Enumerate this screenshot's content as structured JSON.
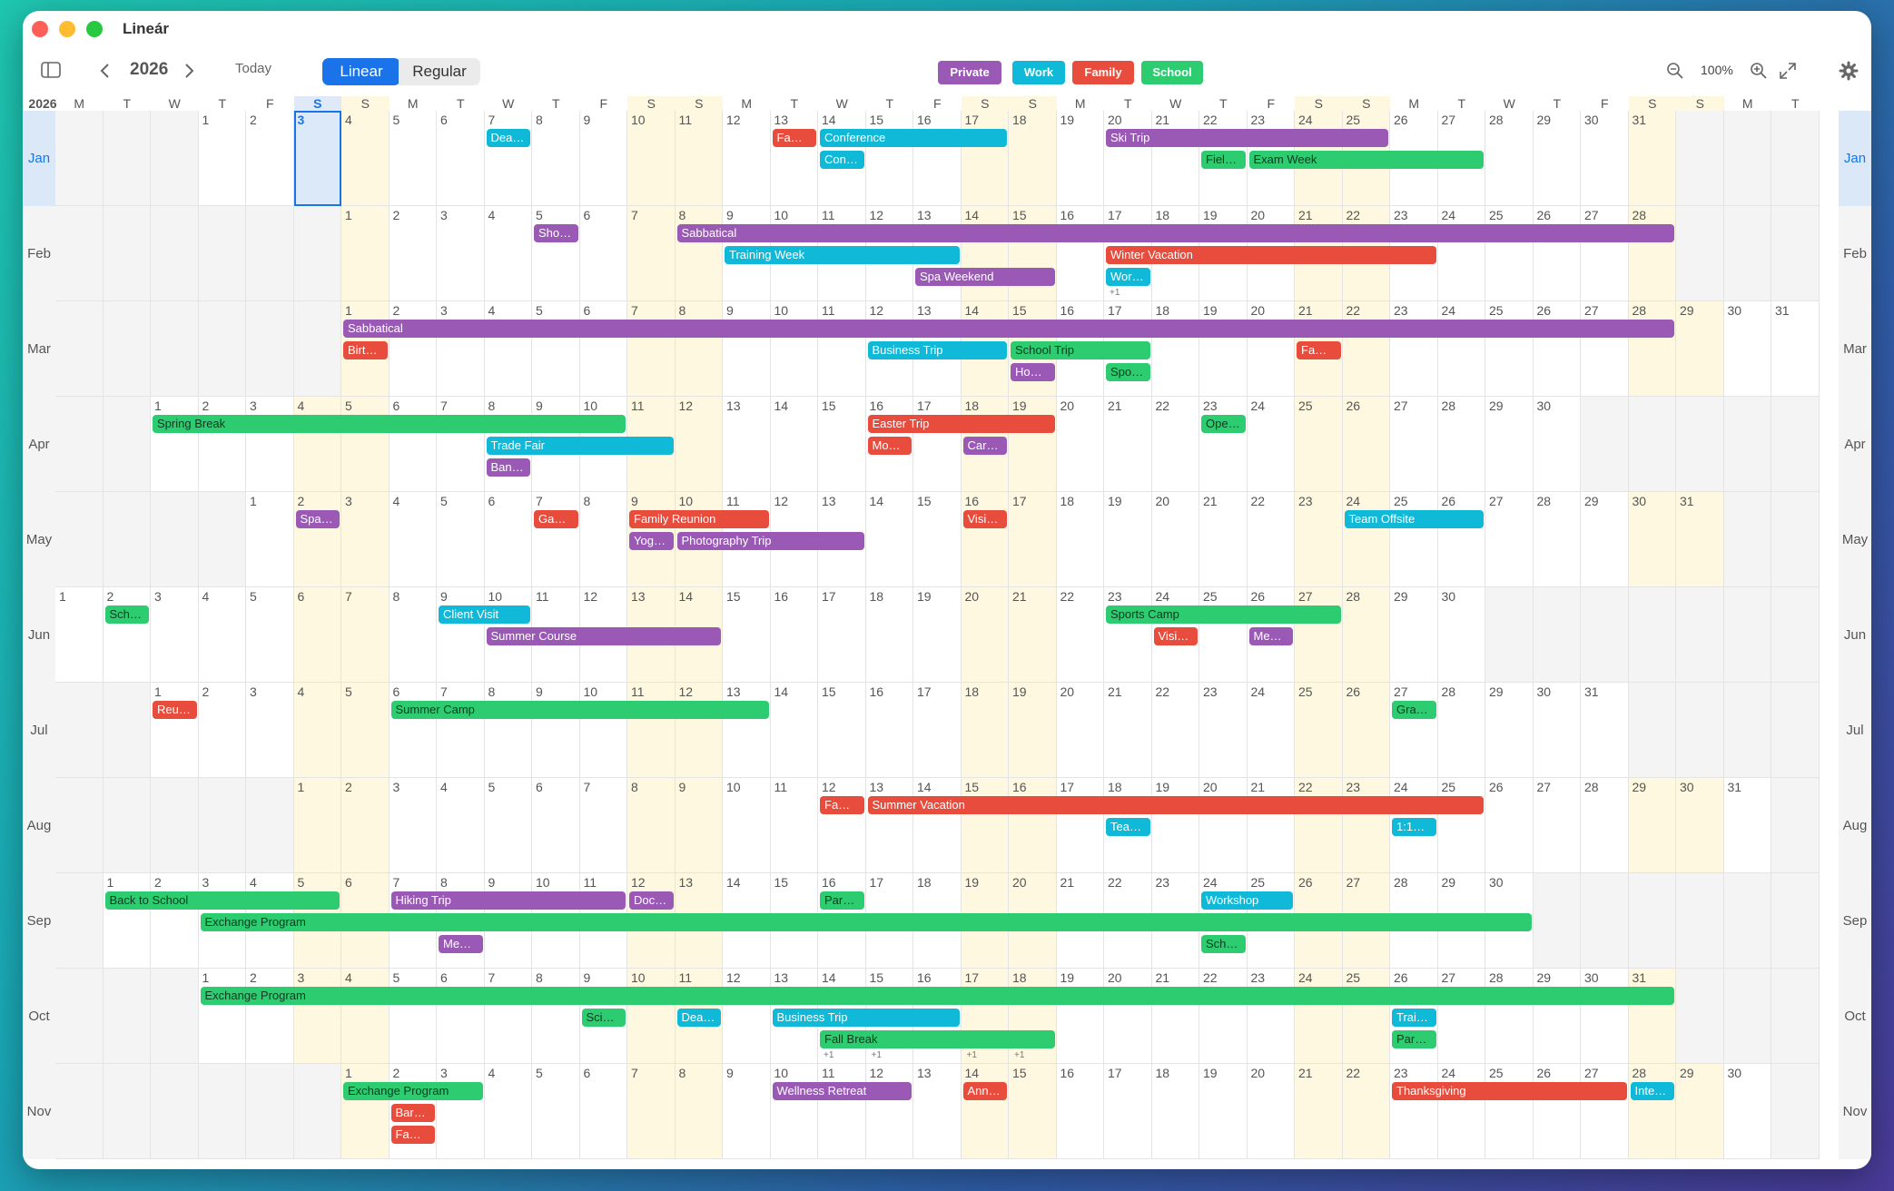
{
  "window": {
    "title": "Lineár"
  },
  "toolbar": {
    "year": "2026",
    "today_label": "Today",
    "view_linear": "Linear",
    "view_regular": "Regular",
    "zoom": "100%"
  },
  "colors": {
    "Private": "#9b59b6",
    "Work": "#10b9d8",
    "Family": "#e84c3d",
    "School": "#2ecc71",
    "today": "#1a73e8",
    "weekend": "#fdf8df"
  },
  "legend": [
    {
      "label": "Private",
      "cat": "Private"
    },
    {
      "label": "Work",
      "cat": "Work"
    },
    {
      "label": "Family",
      "cat": "Family"
    },
    {
      "label": "School",
      "cat": "School"
    }
  ],
  "calendar": {
    "year_label": "2026",
    "weekday_letters": [
      "M",
      "T",
      "W",
      "T",
      "F",
      "S",
      "S"
    ],
    "today": {
      "month": 1,
      "day": 3,
      "header_letter": "S"
    },
    "months": [
      {
        "label": "Jan",
        "offset": 3,
        "days": 31
      },
      {
        "label": "Feb",
        "offset": 6,
        "days": 28
      },
      {
        "label": "Mar",
        "offset": 6,
        "days": 31
      },
      {
        "label": "Apr",
        "offset": 2,
        "days": 30
      },
      {
        "label": "May",
        "offset": 4,
        "days": 31
      },
      {
        "label": "Jun",
        "offset": 0,
        "days": 30
      },
      {
        "label": "Jul",
        "offset": 2,
        "days": 31
      },
      {
        "label": "Aug",
        "offset": 5,
        "days": 31
      },
      {
        "label": "Sep",
        "offset": 1,
        "days": 30
      },
      {
        "label": "Oct",
        "offset": 3,
        "days": 31
      },
      {
        "label": "Nov",
        "offset": 6,
        "days": 30
      }
    ],
    "events": [
      {
        "m": 1,
        "s": 7,
        "e": 7,
        "lane": 0,
        "cat": "Work",
        "label": "Dea…"
      },
      {
        "m": 1,
        "s": 13,
        "e": 13,
        "lane": 0,
        "cat": "Family",
        "label": "Fa…"
      },
      {
        "m": 1,
        "s": 14,
        "e": 17,
        "lane": 0,
        "cat": "Work",
        "label": "Conference"
      },
      {
        "m": 1,
        "s": 14,
        "e": 14,
        "lane": 1,
        "cat": "Work",
        "label": "Con…"
      },
      {
        "m": 1,
        "s": 20,
        "e": 25,
        "lane": 0,
        "cat": "Private",
        "label": "Ski Trip"
      },
      {
        "m": 1,
        "s": 22,
        "e": 22,
        "lane": 1,
        "cat": "School",
        "label": "Fiel…"
      },
      {
        "m": 1,
        "s": 23,
        "e": 27,
        "lane": 1,
        "cat": "School",
        "label": "Exam Week"
      },
      {
        "m": 2,
        "s": 5,
        "e": 5,
        "lane": 0,
        "cat": "Private",
        "label": "Sho…"
      },
      {
        "m": 2,
        "s": 8,
        "e": 28,
        "lane": 0,
        "cat": "Private",
        "label": "Sabbatical"
      },
      {
        "m": 2,
        "s": 9,
        "e": 13,
        "lane": 1,
        "cat": "Work",
        "label": "Training Week"
      },
      {
        "m": 2,
        "s": 17,
        "e": 23,
        "lane": 1,
        "cat": "Family",
        "label": "Winter Vacation"
      },
      {
        "m": 2,
        "s": 13,
        "e": 15,
        "lane": 2,
        "cat": "Private",
        "label": "Spa Weekend"
      },
      {
        "m": 2,
        "s": 17,
        "e": 17,
        "lane": 2,
        "cat": "Work",
        "label": "Wor…"
      },
      {
        "m": 3,
        "s": 1,
        "e": 28,
        "lane": 0,
        "cat": "Private",
        "label": "Sabbatical"
      },
      {
        "m": 3,
        "s": 1,
        "e": 1,
        "lane": 1,
        "cat": "Family",
        "label": "Birt…"
      },
      {
        "m": 3,
        "s": 12,
        "e": 14,
        "lane": 1,
        "cat": "Work",
        "label": "Business Trip"
      },
      {
        "m": 3,
        "s": 15,
        "e": 17,
        "lane": 1,
        "cat": "School",
        "label": "School Trip"
      },
      {
        "m": 3,
        "s": 21,
        "e": 21,
        "lane": 1,
        "cat": "Family",
        "label": "Fa…"
      },
      {
        "m": 3,
        "s": 15,
        "e": 15,
        "lane": 2,
        "cat": "Private",
        "label": "Ho…"
      },
      {
        "m": 3,
        "s": 17,
        "e": 17,
        "lane": 2,
        "cat": "School",
        "label": "Spo…"
      },
      {
        "m": 4,
        "s": 1,
        "e": 10,
        "lane": 0,
        "cat": "School",
        "label": "Spring Break"
      },
      {
        "m": 4,
        "s": 16,
        "e": 19,
        "lane": 0,
        "cat": "Family",
        "label": "Easter Trip"
      },
      {
        "m": 4,
        "s": 23,
        "e": 23,
        "lane": 0,
        "cat": "School",
        "label": "Ope…"
      },
      {
        "m": 4,
        "s": 8,
        "e": 11,
        "lane": 1,
        "cat": "Work",
        "label": "Trade Fair"
      },
      {
        "m": 4,
        "s": 16,
        "e": 16,
        "lane": 1,
        "cat": "Family",
        "label": "Mo…"
      },
      {
        "m": 4,
        "s": 18,
        "e": 18,
        "lane": 1,
        "cat": "Private",
        "label": "Car…"
      },
      {
        "m": 4,
        "s": 8,
        "e": 8,
        "lane": 2,
        "cat": "Private",
        "label": "Ban…"
      },
      {
        "m": 5,
        "s": 2,
        "e": 2,
        "lane": 0,
        "cat": "Private",
        "label": "Spa…"
      },
      {
        "m": 5,
        "s": 7,
        "e": 7,
        "lane": 0,
        "cat": "Family",
        "label": "Ga…"
      },
      {
        "m": 5,
        "s": 9,
        "e": 11,
        "lane": 0,
        "cat": "Family",
        "label": "Family Reunion"
      },
      {
        "m": 5,
        "s": 16,
        "e": 16,
        "lane": 0,
        "cat": "Family",
        "label": "Visi…"
      },
      {
        "m": 5,
        "s": 24,
        "e": 26,
        "lane": 0,
        "cat": "Work",
        "label": "Team Offsite"
      },
      {
        "m": 5,
        "s": 9,
        "e": 9,
        "lane": 1,
        "cat": "Private",
        "label": "Yog…"
      },
      {
        "m": 5,
        "s": 10,
        "e": 13,
        "lane": 1,
        "cat": "Private",
        "label": "Photography Trip"
      },
      {
        "m": 6,
        "s": 2,
        "e": 2,
        "lane": 0,
        "cat": "School",
        "label": "Sch…"
      },
      {
        "m": 6,
        "s": 9,
        "e": 10,
        "lane": 0,
        "cat": "Work",
        "label": "Client Visit"
      },
      {
        "m": 6,
        "s": 23,
        "e": 27,
        "lane": 0,
        "cat": "School",
        "label": "Sports Camp"
      },
      {
        "m": 6,
        "s": 10,
        "e": 14,
        "lane": 1,
        "cat": "Private",
        "label": "Summer Course"
      },
      {
        "m": 6,
        "s": 24,
        "e": 24,
        "lane": 1,
        "cat": "Family",
        "label": "Visi…"
      },
      {
        "m": 6,
        "s": 26,
        "e": 26,
        "lane": 1,
        "cat": "Private",
        "label": "Me…"
      },
      {
        "m": 7,
        "s": 1,
        "e": 1,
        "lane": 0,
        "cat": "Family",
        "label": "Reu…"
      },
      {
        "m": 7,
        "s": 6,
        "e": 13,
        "lane": 0,
        "cat": "School",
        "label": "Summer Camp"
      },
      {
        "m": 7,
        "s": 27,
        "e": 27,
        "lane": 0,
        "cat": "School",
        "label": "Gra…"
      },
      {
        "m": 8,
        "s": 12,
        "e": 12,
        "lane": 0,
        "cat": "Family",
        "label": "Fa…"
      },
      {
        "m": 8,
        "s": 13,
        "e": 25,
        "lane": 0,
        "cat": "Family",
        "label": "Summer Vacation"
      },
      {
        "m": 8,
        "s": 18,
        "e": 18,
        "lane": 1,
        "cat": "Work",
        "label": "Tea…"
      },
      {
        "m": 8,
        "s": 24,
        "e": 24,
        "lane": 1,
        "cat": "Work",
        "label": "1:1…"
      },
      {
        "m": 9,
        "s": 1,
        "e": 5,
        "lane": 0,
        "cat": "School",
        "label": "Back to School"
      },
      {
        "m": 9,
        "s": 7,
        "e": 11,
        "lane": 0,
        "cat": "Private",
        "label": "Hiking Trip"
      },
      {
        "m": 9,
        "s": 12,
        "e": 12,
        "lane": 0,
        "cat": "Private",
        "label": "Doc…"
      },
      {
        "m": 9,
        "s": 16,
        "e": 16,
        "lane": 0,
        "cat": "School",
        "label": "Par…"
      },
      {
        "m": 9,
        "s": 24,
        "e": 25,
        "lane": 0,
        "cat": "Work",
        "label": "Workshop"
      },
      {
        "m": 9,
        "s": 3,
        "e": 30,
        "lane": 1,
        "cat": "School",
        "label": "Exchange Program"
      },
      {
        "m": 9,
        "s": 8,
        "e": 8,
        "lane": 2,
        "cat": "Private",
        "label": "Me…"
      },
      {
        "m": 9,
        "s": 24,
        "e": 24,
        "lane": 2,
        "cat": "School",
        "label": "Sch…"
      },
      {
        "m": 10,
        "s": 1,
        "e": 31,
        "lane": 0,
        "cat": "School",
        "label": "Exchange Program"
      },
      {
        "m": 10,
        "s": 9,
        "e": 9,
        "lane": 1,
        "cat": "School",
        "label": "Sci…"
      },
      {
        "m": 10,
        "s": 11,
        "e": 11,
        "lane": 1,
        "cat": "Work",
        "label": "Dea…"
      },
      {
        "m": 10,
        "s": 13,
        "e": 16,
        "lane": 1,
        "cat": "Work",
        "label": "Business Trip"
      },
      {
        "m": 10,
        "s": 26,
        "e": 26,
        "lane": 1,
        "cat": "Work",
        "label": "Trai…"
      },
      {
        "m": 10,
        "s": 14,
        "e": 18,
        "lane": 2,
        "cat": "School",
        "label": "Fall Break"
      },
      {
        "m": 10,
        "s": 26,
        "e": 26,
        "lane": 2,
        "cat": "School",
        "label": "Par…"
      },
      {
        "m": 11,
        "s": 1,
        "e": 3,
        "lane": 0,
        "cat": "School",
        "label": "Exchange Program"
      },
      {
        "m": 11,
        "s": 10,
        "e": 12,
        "lane": 0,
        "cat": "Private",
        "label": "Wellness Retreat"
      },
      {
        "m": 11,
        "s": 14,
        "e": 14,
        "lane": 0,
        "cat": "Family",
        "label": "Ann…"
      },
      {
        "m": 11,
        "s": 23,
        "e": 27,
        "lane": 0,
        "cat": "Family",
        "label": "Thanksgiving"
      },
      {
        "m": 11,
        "s": 28,
        "e": 28,
        "lane": 0,
        "cat": "Work",
        "label": "Inte…"
      },
      {
        "m": 11,
        "s": 2,
        "e": 2,
        "lane": 1,
        "cat": "Family",
        "label": "Bar…"
      },
      {
        "m": 11,
        "s": 2,
        "e": 2,
        "lane": 2,
        "cat": "Family",
        "label": "Fa…"
      }
    ],
    "more_badges": [
      {
        "m": 2,
        "d": 17,
        "label": "+1"
      },
      {
        "m": 10,
        "d": 14,
        "label": "+1"
      },
      {
        "m": 10,
        "d": 15,
        "label": "+1"
      },
      {
        "m": 10,
        "d": 17,
        "label": "+1"
      },
      {
        "m": 10,
        "d": 18,
        "label": "+1"
      }
    ]
  }
}
